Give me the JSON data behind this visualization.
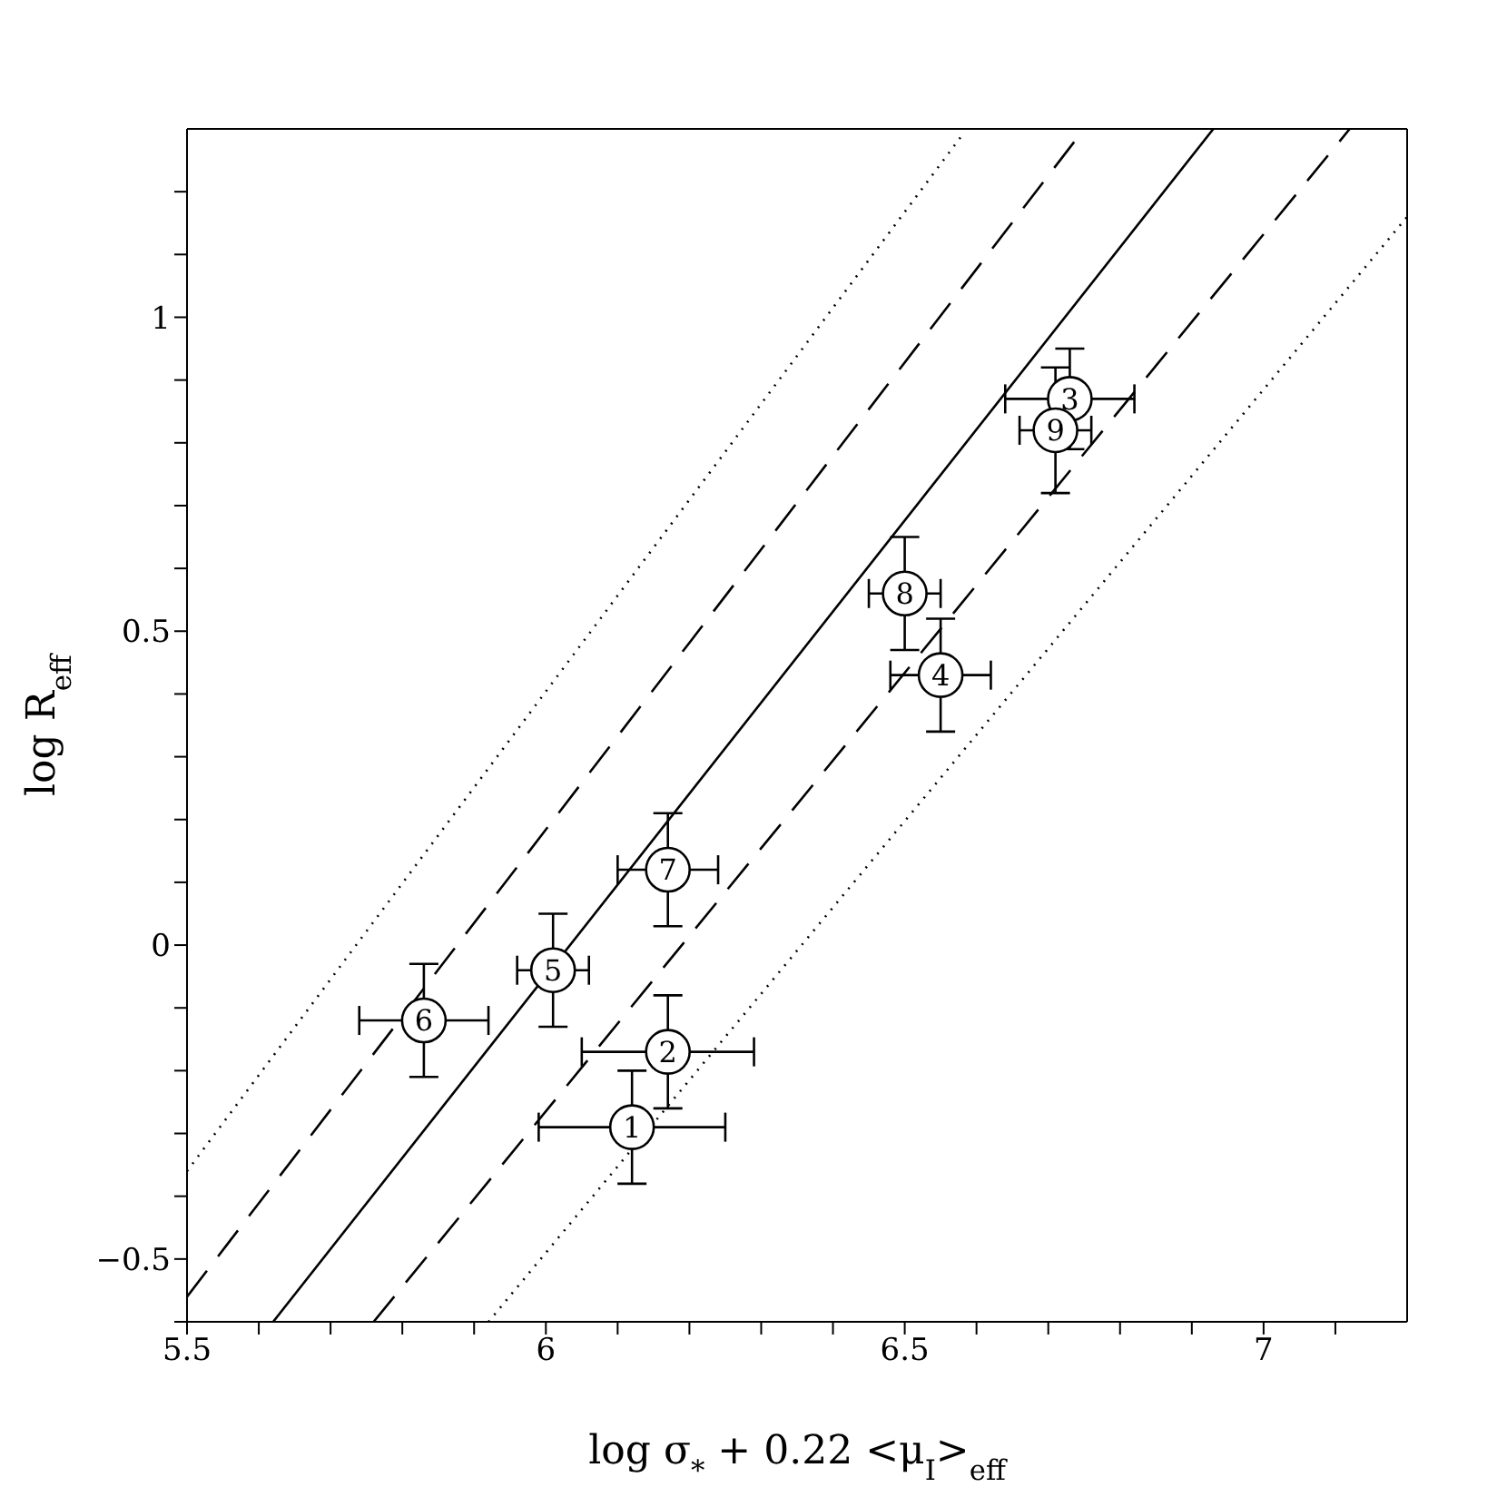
{
  "chart_data": {
    "type": "scatter",
    "xlabel": "log σ$_{*}$ + 0.22 <μ$_{I}$>$_{eff}$",
    "ylabel": "log R$_{eff}$",
    "xlim": [
      5.5,
      7.2
    ],
    "ylim": [
      -0.6,
      1.3
    ],
    "xticks": [
      5.5,
      {
        "value": 5.6,
        "label": null
      },
      {
        "value": 5.7,
        "label": null
      },
      {
        "value": 5.8,
        "label": null
      },
      {
        "value": 5.9,
        "label": null
      },
      6,
      {
        "value": 6.1,
        "label": null
      },
      {
        "value": 6.2,
        "label": null
      },
      {
        "value": 6.3,
        "label": null
      },
      {
        "value": 6.4,
        "label": null
      },
      6.5,
      {
        "value": 6.6,
        "label": null
      },
      {
        "value": 6.7,
        "label": null
      },
      {
        "value": 6.8,
        "label": null
      },
      {
        "value": 6.9,
        "label": null
      },
      7,
      {
        "value": 7.1,
        "label": null
      }
    ],
    "yticks": [
      {
        "value": -0.6,
        "label": null
      },
      {
        "value": -0.5,
        "label": "−0.5"
      },
      {
        "value": -0.4,
        "label": null
      },
      {
        "value": -0.3,
        "label": null
      },
      {
        "value": -0.2,
        "label": null
      },
      {
        "value": -0.1,
        "label": null
      },
      0,
      {
        "value": 0.1,
        "label": null
      },
      {
        "value": 0.2,
        "label": null
      },
      {
        "value": 0.3,
        "label": null
      },
      {
        "value": 0.4,
        "label": null
      },
      0.5,
      {
        "value": 0.6,
        "label": null
      },
      {
        "value": 0.7,
        "label": null
      },
      {
        "value": 0.8,
        "label": null
      },
      {
        "value": 0.9,
        "label": null
      },
      1,
      {
        "value": 1.1,
        "label": null
      },
      {
        "value": 1.2,
        "label": null
      }
    ],
    "grid": false,
    "marker": "circle",
    "series": [
      {
        "color": "#000000",
        "x": [
          6.12,
          6.17,
          6.73,
          6.55,
          6.01,
          5.83,
          6.17,
          6.5,
          6.71
        ],
        "values": [
          -0.29,
          -0.17,
          0.87,
          0.43,
          -0.04,
          -0.12,
          0.12,
          0.56,
          0.82
        ],
        "errors": [
          0.09,
          0.09,
          0.08,
          0.09,
          0.09,
          0.09,
          0.09,
          0.09,
          0.1
        ],
        "xerrors": [
          0.13,
          0.12,
          0.09,
          0.07,
          0.05,
          0.09,
          0.07,
          0.05,
          0.05
        ]
      },
      {
        "type": "line",
        "color": "#000000",
        "line_style": "solid",
        "marker": "none",
        "x": [
          5.62,
          6.93
        ],
        "values": [
          -0.6,
          1.3
        ]
      },
      {
        "type": "line",
        "color": "#000000",
        "line_style": "dashed",
        "marker": "none",
        "x": [
          5.5,
          6.75
        ],
        "values": [
          -0.56,
          1.3
        ]
      },
      {
        "type": "line",
        "color": "#000000",
        "line_style": "dashed",
        "marker": "none",
        "x": [
          5.76,
          7.12
        ],
        "values": [
          -0.6,
          1.3
        ]
      },
      {
        "type": "line",
        "color": "#000000",
        "line_style": "dotted",
        "marker": "none",
        "x": [
          5.5,
          6.58
        ],
        "values": [
          -0.36,
          1.29
        ]
      },
      {
        "type": "line",
        "color": "#000000",
        "line_style": "dotted",
        "marker": "none",
        "x": [
          5.92,
          7.2
        ],
        "values": [
          -0.6,
          1.16
        ]
      }
    ],
    "annotations": [
      {
        "text": "1",
        "x": 6.12,
        "y": -0.29
      },
      {
        "text": "2",
        "x": 6.17,
        "y": -0.17
      },
      {
        "text": "3",
        "x": 6.73,
        "y": 0.87
      },
      {
        "text": "4",
        "x": 6.55,
        "y": 0.43
      },
      {
        "text": "5",
        "x": 6.01,
        "y": -0.04
      },
      {
        "text": "6",
        "x": 5.83,
        "y": -0.12
      },
      {
        "text": "7",
        "x": 6.17,
        "y": 0.12
      },
      {
        "text": "8",
        "x": 6.5,
        "y": 0.56
      },
      {
        "text": "9",
        "x": 6.71,
        "y": 0.82
      }
    ]
  }
}
